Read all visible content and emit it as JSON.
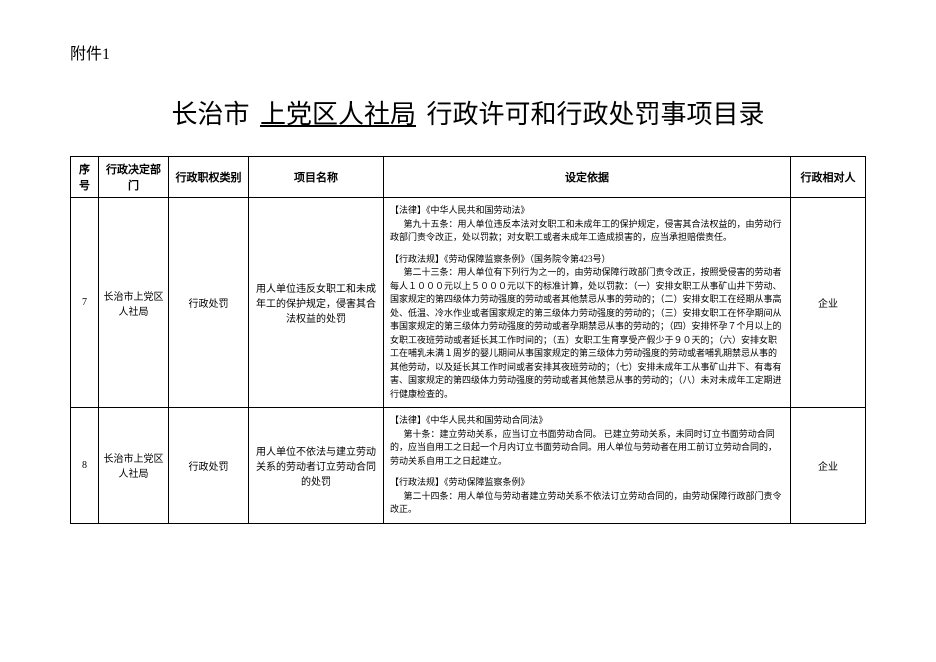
{
  "attachment_label": "附件1",
  "title": {
    "prefix": "长治市",
    "underlined": "上党区人社局",
    "suffix": "行政许可和行政处罚事项目录"
  },
  "columns": {
    "seq": "序号",
    "dept": "行政决定部门",
    "type": "行政职权类别",
    "project": "项目名称",
    "basis": "设定依据",
    "subject": "行政相对人"
  },
  "rows": [
    {
      "seq": "7",
      "dept": "长治市上党区人社局",
      "type": "行政处罚",
      "project": "用人单位违反女职工和未成年工的保护规定，侵害其合法权益的处罚",
      "basis_block1_title": "【法律】《中华人民共和国劳动法》",
      "basis_block1_text": "第九十五条：用人单位违反本法对女职工和未成年工的保护规定，侵害其合法权益的，由劳动行政部门责令改正，处以罚款；对女职工或者未成年工造成损害的，应当承担赔偿责任。",
      "basis_block2_title": "【行政法规】《劳动保障监察条例》（国务院令第423号）",
      "basis_block2_text": "第二十三条：用人单位有下列行为之一的，由劳动保障行政部门责令改正，按照受侵害的劳动者每人１０００元以上５０００元以下的标准计算，处以罚款：（一）安排女职工从事矿山井下劳动、国家规定的第四级体力劳动强度的劳动或者其他禁忌从事的劳动的；（二）安排女职工在经期从事高处、低温、冷水作业或者国家规定的第三级体力劳动强度的劳动的；（三）安排女职工在怀孕期间从事国家规定的第三级体力劳动强度的劳动或者孕期禁忌从事的劳动的；（四）安排怀孕７个月以上的女职工夜班劳动或者延长其工作时间的；（五）女职工生育享受产假少于９０天的；（六）安排女职工在哺乳未满１周岁的婴儿期间从事国家规定的第三级体力劳动强度的劳动或者哺乳期禁忌从事的其他劳动，以及延长其工作时间或者安排其夜班劳动的；（七）安排未成年工从事矿山井下、有毒有害、国家规定的第四级体力劳动强度的劳动或者其他禁忌从事的劳动的；（八）未对未成年工定期进行健康检查的。",
      "subject": "企业"
    },
    {
      "seq": "8",
      "dept": "长治市上党区人社局",
      "type": "行政处罚",
      "project": "用人单位不依法与建立劳动关系的劳动者订立劳动合同的处罚",
      "basis_block1_title": "【法律】《中华人民共和国劳动合同法》",
      "basis_block1_text": "第十条：建立劳动关系，应当订立书面劳动合同。 已建立劳动关系，未同时订立书面劳动合同的，应当自用工之日起一个月内订立书面劳动合同。用人单位与劳动者在用工前订立劳动合同的，劳动关系自用工之日起建立。",
      "basis_block2_title": "【行政法规】《劳动保障监察条例》",
      "basis_block2_text": "第二十四条：用人单位与劳动者建立劳动关系不依法订立劳动合同的，由劳动保障行政部门责令改正。",
      "subject": "企业"
    }
  ]
}
